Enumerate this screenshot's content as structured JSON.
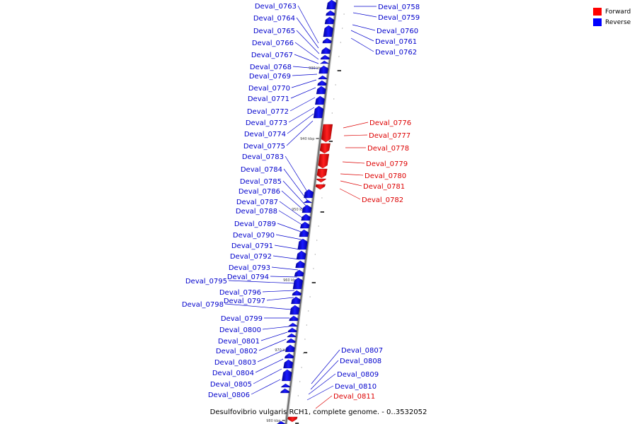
{
  "title": "Desulfovibrio vulgaris RCH1, complete genome. - 0..3532052",
  "legend": {
    "forward": {
      "label": "Forward",
      "color": "#ff0000"
    },
    "reverse": {
      "label": "Reverse",
      "color": "#0000ff"
    }
  },
  "ticks": [
    "930 kbp",
    "940 kbp",
    "950 kbp",
    "960 kbp",
    "970 kbp",
    "980 kbp"
  ],
  "genes": {
    "reverse": [
      "Deval_0758",
      "Deval_0759",
      "Deval_0760",
      "Deval_0761",
      "Deval_0762",
      "Deval_0763",
      "Deval_0764",
      "Deval_0765",
      "Deval_0766",
      "Deval_0767",
      "Deval_0768",
      "Deval_0769",
      "Deval_0770",
      "Deval_0771",
      "Deval_0772",
      "Deval_0773",
      "Deval_0774",
      "Deval_0775",
      "Deval_0783",
      "Deval_0784",
      "Deval_0785",
      "Deval_0786",
      "Deval_0787",
      "Deval_0788",
      "Deval_0789",
      "Deval_0790",
      "Deval_0791",
      "Deval_0792",
      "Deval_0793",
      "Deval_0794",
      "Deval_0795",
      "Deval_0796",
      "Deval_0797",
      "Deval_0798",
      "Deval_0799",
      "Deval_0800",
      "Deval_0801",
      "Deval_0802",
      "Deval_0803",
      "Deval_0804",
      "Deval_0805",
      "Deval_0806",
      "Deval_0807",
      "Deval_0808",
      "Deval_0809",
      "Deval_0810"
    ],
    "forward": [
      "Deval_0776",
      "Deval_0777",
      "Deval_0778",
      "Deval_0779",
      "Deval_0780",
      "Deval_0781",
      "Deval_0782",
      "Deval_0811"
    ]
  }
}
